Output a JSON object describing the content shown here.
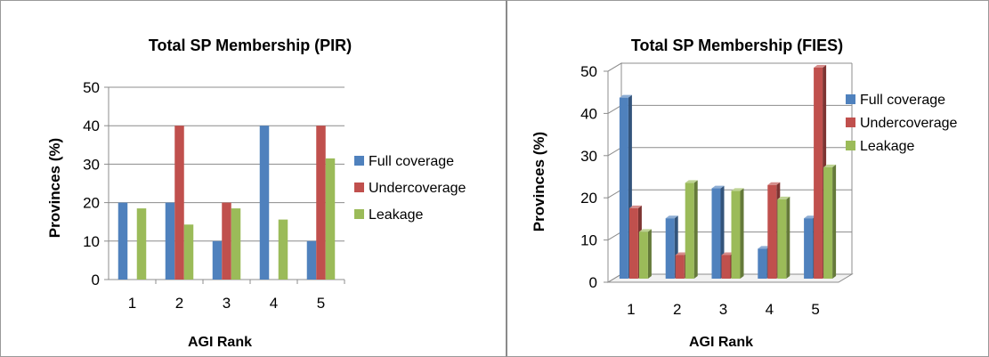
{
  "chart_data": [
    {
      "type": "bar",
      "title": "Total SP Membership (PIR)",
      "xlabel": "AGI Rank",
      "ylabel": "Provinces (%)",
      "categories": [
        "1",
        "2",
        "3",
        "4",
        "5"
      ],
      "ylim": [
        0,
        50
      ],
      "yticks": [
        0,
        10,
        20,
        30,
        40,
        50
      ],
      "grid": true,
      "legend_position": "right",
      "series": [
        {
          "name": "Full coverage",
          "values": [
            20,
            20,
            10,
            40,
            10
          ],
          "color": "#4f81bd"
        },
        {
          "name": "Undercoverage",
          "values": [
            0,
            40,
            20,
            0,
            40
          ],
          "color": "#c0504d"
        },
        {
          "name": "Leakage",
          "values": [
            18.5,
            14.3,
            18.5,
            15.6,
            31.5
          ],
          "color": "#9bbb59"
        }
      ]
    },
    {
      "type": "bar",
      "style": "3d-column",
      "title": "Total SP Membership (FIES)",
      "xlabel": "AGI Rank",
      "ylabel": "Provinces (%)",
      "categories": [
        "1",
        "2",
        "3",
        "4",
        "5"
      ],
      "ylim": [
        0,
        50
      ],
      "yticks": [
        0,
        10,
        20,
        30,
        40,
        50
      ],
      "grid": true,
      "legend_position": "top-right",
      "series": [
        {
          "name": "Full coverage",
          "values": [
            42.9,
            14.3,
            21.4,
            7.1,
            14.3
          ],
          "color": "#4f81bd"
        },
        {
          "name": "Undercoverage",
          "values": [
            16.7,
            5.6,
            5.6,
            22.2,
            50
          ],
          "color": "#c0504d"
        },
        {
          "name": "Leakage",
          "values": [
            11.1,
            22.7,
            20.8,
            18.8,
            26.4
          ],
          "color": "#9bbb59"
        }
      ]
    }
  ]
}
